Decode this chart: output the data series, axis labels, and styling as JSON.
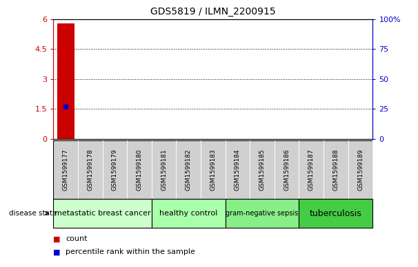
{
  "title": "GDS5819 / ILMN_2200915",
  "samples": [
    "GSM1599177",
    "GSM1599178",
    "GSM1599179",
    "GSM1599180",
    "GSM1599181",
    "GSM1599182",
    "GSM1599183",
    "GSM1599184",
    "GSM1599185",
    "GSM1599186",
    "GSM1599187",
    "GSM1599188",
    "GSM1599189"
  ],
  "count_values": [
    5.8,
    0,
    0,
    0,
    0,
    0,
    0,
    0,
    0,
    0,
    0,
    0,
    0
  ],
  "percentile_values": [
    27,
    0,
    0,
    0,
    0,
    0,
    0,
    0,
    0,
    0,
    0,
    0,
    0
  ],
  "ylim_left": [
    0,
    6
  ],
  "ylim_right": [
    0,
    100
  ],
  "yticks_left": [
    0,
    1.5,
    3,
    4.5,
    6
  ],
  "yticks_right": [
    0,
    25,
    50,
    75,
    100
  ],
  "ytick_labels_left": [
    "0",
    "1.5",
    "3",
    "4.5",
    "6"
  ],
  "ytick_labels_right": [
    "0",
    "25",
    "50",
    "75",
    "100%"
  ],
  "disease_groups": [
    {
      "label": "metastatic breast cancer",
      "indices": [
        0,
        1,
        2,
        3
      ],
      "color": "#ccffcc",
      "fontsize": 8
    },
    {
      "label": "healthy control",
      "indices": [
        4,
        5,
        6
      ],
      "color": "#aaffaa",
      "fontsize": 8
    },
    {
      "label": "gram-negative sepsis",
      "indices": [
        7,
        8,
        9
      ],
      "color": "#88ee88",
      "fontsize": 7
    },
    {
      "label": "tuberculosis",
      "indices": [
        10,
        11,
        12
      ],
      "color": "#44cc44",
      "fontsize": 9
    }
  ],
  "bar_color": "#cc0000",
  "dot_color": "#0000cc",
  "tick_row_bg": "#d0d0d0",
  "disease_state_label": "disease state",
  "legend_count_label": "count",
  "legend_percentile_label": "percentile rank within the sample",
  "left_axis_color": "#cc0000",
  "right_axis_color": "#0000cc"
}
